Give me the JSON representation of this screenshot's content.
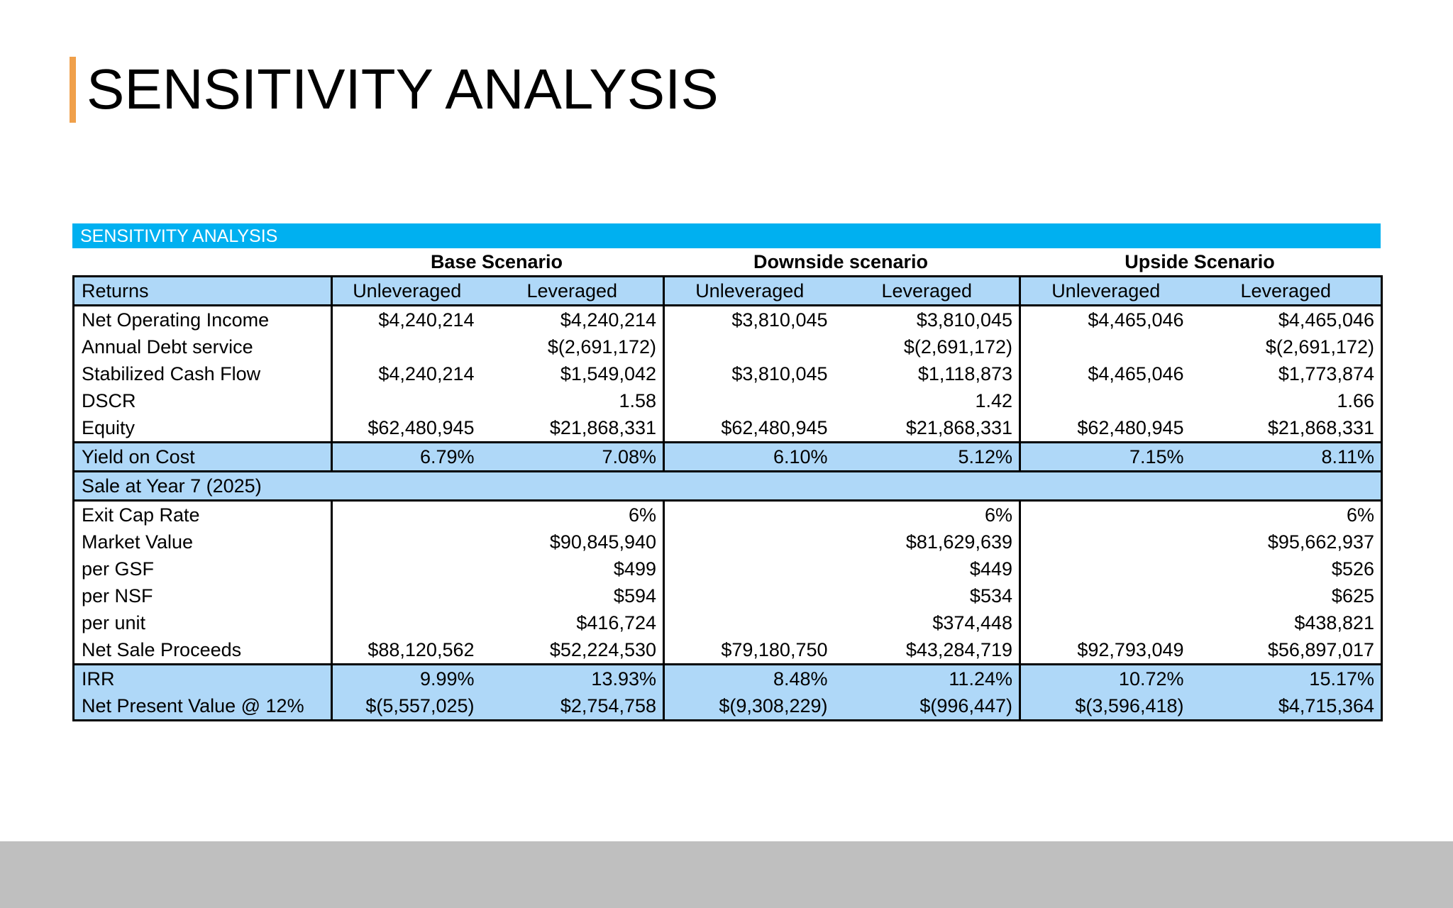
{
  "page": {
    "title": "SENSITIVITY ANALYSIS"
  },
  "table": {
    "banner": "SENSITIVITY ANALYSIS",
    "scenarios": [
      "Base Scenario",
      "Downside scenario",
      "Upside Scenario"
    ],
    "header": [
      "Returns",
      "Unleveraged",
      "Leveraged",
      "Unleveraged",
      "Leveraged",
      "Unleveraged",
      "Leveraged"
    ],
    "returns_rows": [
      [
        "Net Operating Income",
        "$4,240,214",
        "$4,240,214",
        "$3,810,045",
        "$3,810,045",
        "$4,465,046",
        "$4,465,046"
      ],
      [
        "Annual Debt service",
        "",
        "$(2,691,172)",
        "",
        "$(2,691,172)",
        "",
        "$(2,691,172)"
      ],
      [
        "Stabilized Cash Flow",
        "$4,240,214",
        "$1,549,042",
        "$3,810,045",
        "$1,118,873",
        "$4,465,046",
        "$1,773,874"
      ],
      [
        "DSCR",
        "",
        "1.58",
        "",
        "1.42",
        "",
        "1.66"
      ],
      [
        "Equity",
        "$62,480,945",
        "$21,868,331",
        "$62,480,945",
        "$21,868,331",
        "$62,480,945",
        "$21,868,331"
      ]
    ],
    "yield_row": [
      "Yield on Cost",
      "6.79%",
      "7.08%",
      "6.10%",
      "5.12%",
      "7.15%",
      "8.11%"
    ],
    "sale_header": "Sale at Year 7 (2025)",
    "sale_rows": [
      [
        "Exit Cap Rate",
        "",
        "6%",
        "",
        "6%",
        "",
        "6%"
      ],
      [
        "Market Value",
        "",
        "$90,845,940",
        "",
        "$81,629,639",
        "",
        "$95,662,937"
      ],
      [
        "per GSF",
        "",
        "$499",
        "",
        "$449",
        "",
        "$526"
      ],
      [
        "per NSF",
        "",
        "$594",
        "",
        "$534",
        "",
        "$625"
      ],
      [
        "per unit",
        "",
        "$416,724",
        "",
        "$374,448",
        "",
        "$438,821"
      ],
      [
        "Net Sale Proceeds",
        "$88,120,562",
        "$52,224,530",
        "$79,180,750",
        "$43,284,719",
        "$92,793,049",
        "$56,897,017"
      ]
    ],
    "final_rows": [
      [
        "IRR",
        "9.99%",
        "13.93%",
        "8.48%",
        "11.24%",
        "10.72%",
        "15.17%"
      ],
      [
        "Net Present Value @ 12%",
        "$(5,557,025)",
        "$2,754,758",
        "$(9,308,229)",
        "$(996,447)",
        "$(3,596,418)",
        "$4,715,364"
      ]
    ]
  }
}
